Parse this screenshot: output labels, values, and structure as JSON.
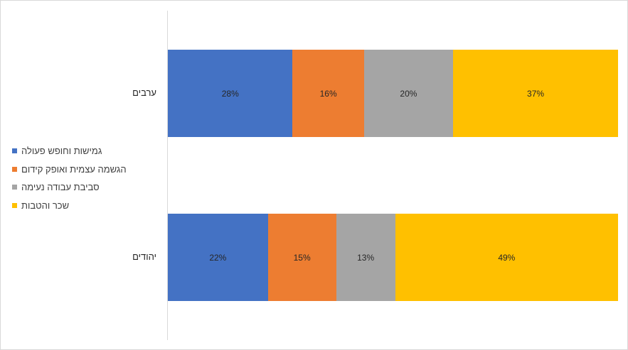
{
  "chart_data": {
    "type": "bar",
    "orientation": "horizontal",
    "stacked": "percent",
    "categories": [
      "ערבים",
      "יהודים"
    ],
    "series": [
      {
        "name": "גמישות וחופש פעולה",
        "color": "#4472c4",
        "values": [
          28,
          22
        ],
        "labels": [
          "28%",
          "22%"
        ]
      },
      {
        "name": "הגשמה עצמית ואופק קידום",
        "color": "#ed7d31",
        "values": [
          16,
          15
        ],
        "labels": [
          "16%",
          "15%"
        ]
      },
      {
        "name": "סביבת עבודה נעימה",
        "color": "#a5a5a5",
        "values": [
          20,
          13
        ],
        "labels": [
          "20%",
          "13%"
        ]
      },
      {
        "name": "שכר והטבות",
        "color": "#ffc000",
        "values": [
          37,
          49
        ],
        "labels": [
          "37%",
          "49%"
        ]
      }
    ],
    "legend_position": "left",
    "grid": false
  }
}
